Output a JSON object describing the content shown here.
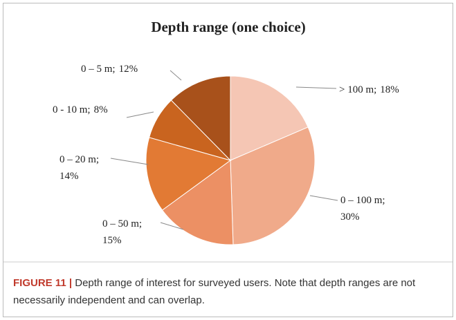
{
  "chart_data": {
    "type": "pie",
    "title": "Depth range (one choice)",
    "categories": [
      "> 100 m;",
      "0 – 100 m;",
      "0 – 50 m;",
      "0 – 20 m;",
      "0 - 10 m;",
      "0 – 5 m;"
    ],
    "values": [
      18,
      30,
      15,
      14,
      8,
      12
    ],
    "value_labels": [
      "18%",
      "30%",
      "15%",
      "14%",
      "8%",
      "12%"
    ],
    "colors": [
      "#f5c6b4",
      "#f0aa8a",
      "#ec9064",
      "#e27a34",
      "#c9641f",
      "#a8511b"
    ]
  },
  "caption": {
    "label": "FIGURE 11 |",
    "text": "Depth range of interest for surveyed users. Note that depth ranges are not necessarily independent and can overlap."
  }
}
